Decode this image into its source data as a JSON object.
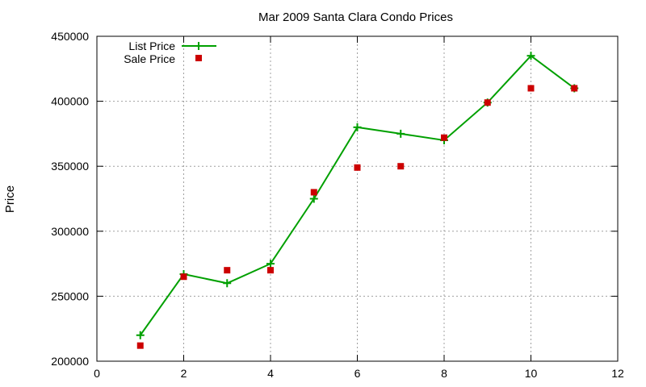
{
  "chart_data": {
    "type": "line",
    "title": "Mar 2009 Santa Clara Condo Prices",
    "xlabel": "",
    "ylabel": "Price",
    "xlim": [
      0,
      12
    ],
    "ylim": [
      200000,
      450000
    ],
    "x_ticks": [
      0,
      2,
      4,
      6,
      8,
      10,
      12
    ],
    "y_ticks": [
      200000,
      250000,
      300000,
      350000,
      400000,
      450000
    ],
    "grid": true,
    "legend_position": "top-left",
    "series": [
      {
        "name": "List Price",
        "style": "line-points",
        "marker": "plus",
        "color": "#00a000",
        "x": [
          1,
          2,
          3,
          4,
          5,
          6,
          7,
          8,
          9,
          10,
          11
        ],
        "y": [
          220000,
          267000,
          260000,
          275000,
          325000,
          380000,
          375000,
          370000,
          399000,
          435000,
          410000
        ]
      },
      {
        "name": "Sale Price",
        "style": "points",
        "marker": "square",
        "color": "#cc0000",
        "x": [
          1,
          2,
          3,
          4,
          5,
          6,
          7,
          8,
          9,
          10,
          11
        ],
        "y": [
          212000,
          265000,
          270000,
          270000,
          330000,
          349000,
          350000,
          372000,
          399000,
          410000,
          410000
        ]
      }
    ]
  }
}
